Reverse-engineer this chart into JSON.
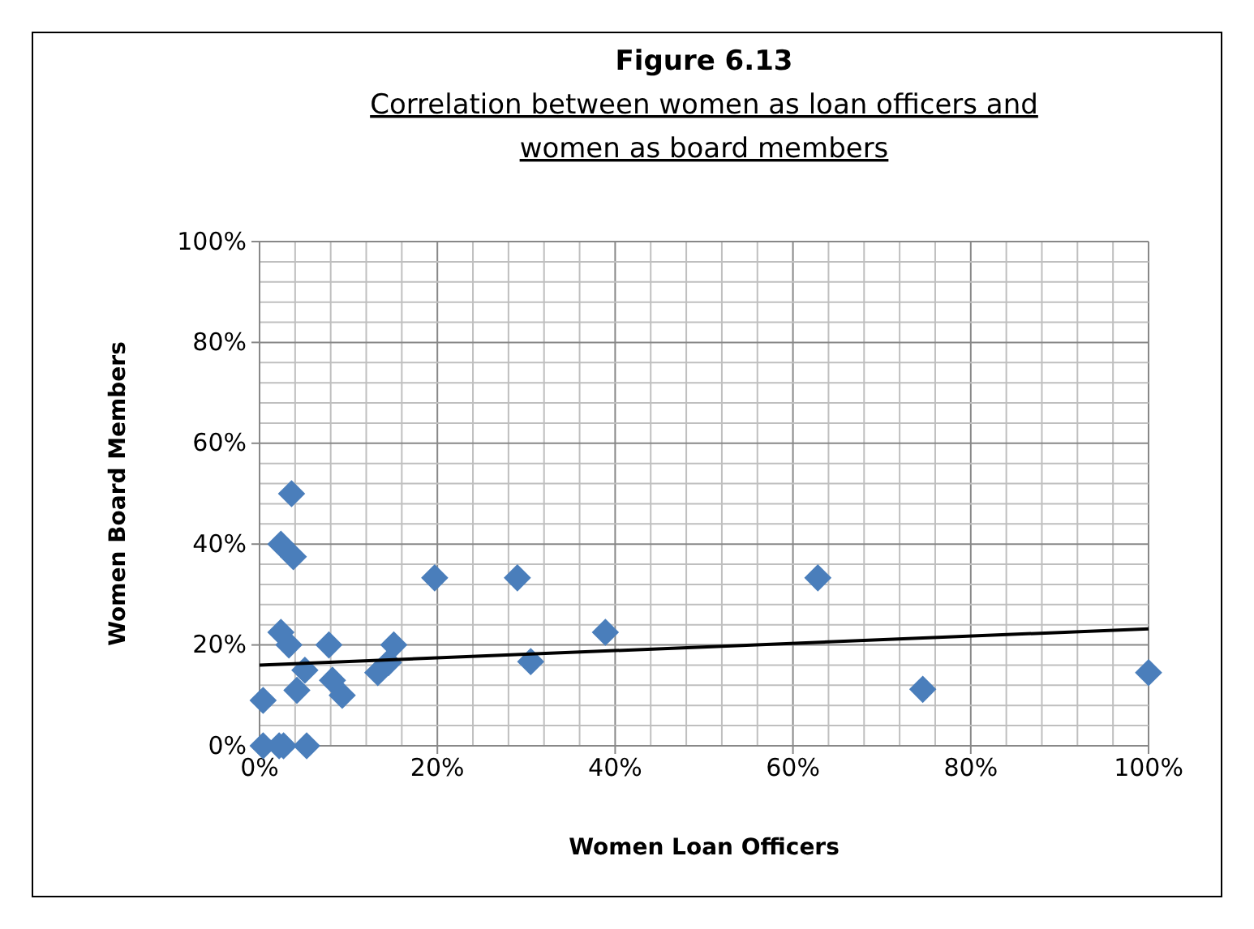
{
  "chart_data": {
    "type": "scatter",
    "title": "Figure 6.13",
    "subtitle": "Correlation between women as loan officers and women as board members",
    "xlabel": "Women Loan Officers",
    "ylabel": "Women Board Members",
    "xlim": [
      0,
      100
    ],
    "ylim": [
      0,
      100
    ],
    "xticks": [
      {
        "value": 0,
        "label": "0%"
      },
      {
        "value": 20,
        "label": "20%"
      },
      {
        "value": 40,
        "label": "40%"
      },
      {
        "value": 60,
        "label": "60%"
      },
      {
        "value": 80,
        "label": "80%"
      },
      {
        "value": 100,
        "label": "100%"
      }
    ],
    "yticks": [
      {
        "value": 0,
        "label": "0%"
      },
      {
        "value": 20,
        "label": "20%"
      },
      {
        "value": 40,
        "label": "40%"
      },
      {
        "value": 60,
        "label": "60%"
      },
      {
        "value": 80,
        "label": "80%"
      },
      {
        "value": 100,
        "label": "100%"
      }
    ],
    "grid": true,
    "series": [
      {
        "marker": "diamond",
        "color": "#4a7ebb",
        "x": [
          0.4,
          0.4,
          2.2,
          2.7,
          5.3,
          3.6,
          2.4,
          3.8,
          19.7,
          29,
          2.4,
          3.3,
          7.8,
          15.1,
          5.1,
          4.2,
          8.2,
          9.3,
          13.3,
          14.5,
          30.5,
          38.9,
          62.8,
          74.6,
          100
        ],
        "values": [
          9,
          0,
          0,
          0,
          0,
          50,
          40,
          37.5,
          33.3,
          33.3,
          22.5,
          20,
          20,
          20,
          15,
          11,
          13,
          10,
          14.5,
          16.5,
          16.7,
          22.5,
          33.3,
          11.2,
          14.5
        ]
      },
      {
        "type": "line",
        "marker": "none",
        "color": "#000000",
        "x": [
          0,
          100
        ],
        "values": [
          16,
          23.2
        ]
      }
    ]
  }
}
